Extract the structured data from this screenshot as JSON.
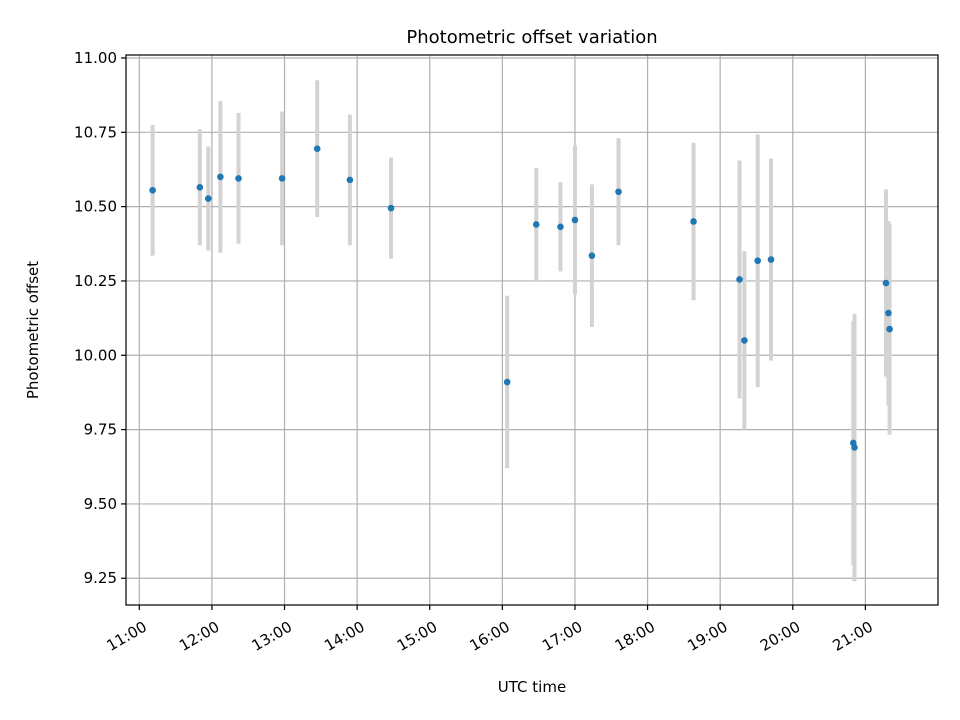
{
  "chart_data": {
    "type": "scatter",
    "title": "Photometric offset variation",
    "xlabel": "UTC time",
    "ylabel": "Photometric offset",
    "x_is_time": true,
    "xlim": [
      "10:49",
      "22:00"
    ],
    "ylim": [
      9.16,
      11.01
    ],
    "xticks": [
      "11:00",
      "12:00",
      "13:00",
      "14:00",
      "15:00",
      "16:00",
      "17:00",
      "18:00",
      "19:00",
      "20:00",
      "21:00"
    ],
    "yticks": [
      "9.25",
      "9.50",
      "9.75",
      "10.00",
      "10.25",
      "10.50",
      "10.75",
      "11.00"
    ],
    "grid": true,
    "colors": {
      "point": "#1f77b4",
      "error_bar": "#d3d3d3",
      "grid": "#b0b0b0"
    },
    "series": [
      {
        "points": [
          {
            "x": "11:11",
            "y": 10.555,
            "err": 0.22
          },
          {
            "x": "11:50",
            "y": 10.565,
            "err": 0.195
          },
          {
            "x": "11:57",
            "y": 10.527,
            "err": 0.175
          },
          {
            "x": "12:07",
            "y": 10.6,
            "err": 0.255
          },
          {
            "x": "12:22",
            "y": 10.595,
            "err": 0.22
          },
          {
            "x": "12:58",
            "y": 10.595,
            "err": 0.225
          },
          {
            "x": "13:27",
            "y": 10.695,
            "err": 0.23
          },
          {
            "x": "13:54",
            "y": 10.59,
            "err": 0.22
          },
          {
            "x": "14:28",
            "y": 10.495,
            "err": 0.17
          },
          {
            "x": "16:04",
            "y": 9.91,
            "err": 0.29
          },
          {
            "x": "16:28",
            "y": 10.44,
            "err": 0.19
          },
          {
            "x": "16:48",
            "y": 10.432,
            "err": 0.15
          },
          {
            "x": "17:00",
            "y": 10.455,
            "err": 0.25
          },
          {
            "x": "17:14",
            "y": 10.335,
            "err": 0.24
          },
          {
            "x": "17:36",
            "y": 10.55,
            "err": 0.18
          },
          {
            "x": "18:38",
            "y": 10.45,
            "err": 0.265
          },
          {
            "x": "19:16",
            "y": 10.255,
            "err": 0.4
          },
          {
            "x": "19:20",
            "y": 10.05,
            "err": 0.3
          },
          {
            "x": "19:31",
            "y": 10.318,
            "err": 0.425
          },
          {
            "x": "19:42",
            "y": 10.322,
            "err": 0.34
          },
          {
            "x": "20:50",
            "y": 9.705,
            "err": 0.41
          },
          {
            "x": "20:51",
            "y": 9.69,
            "err": 0.45
          },
          {
            "x": "21:17",
            "y": 10.243,
            "err": 0.315
          },
          {
            "x": "21:19",
            "y": 10.142,
            "err": 0.31
          },
          {
            "x": "21:20",
            "y": 10.088,
            "err": 0.355
          }
        ]
      }
    ]
  }
}
